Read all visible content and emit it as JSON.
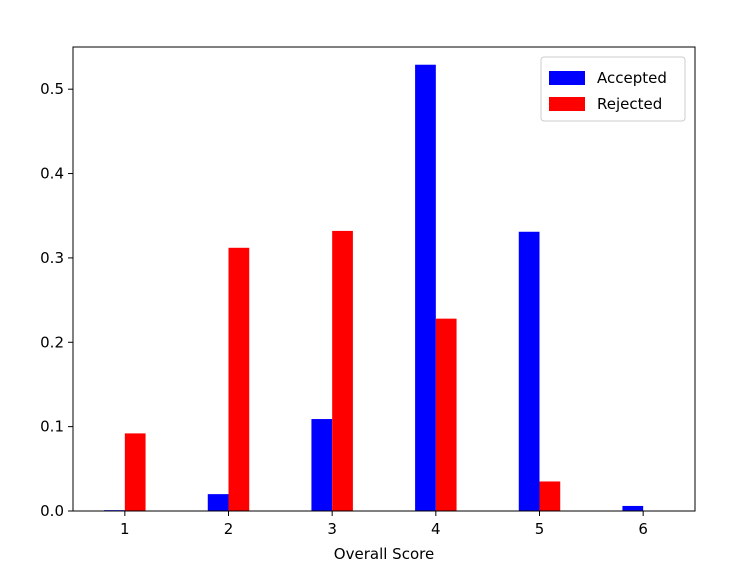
{
  "chart_data": {
    "type": "bar",
    "title": "",
    "xlabel": "Overall Score",
    "ylabel": "",
    "categories": [
      "1",
      "2",
      "3",
      "4",
      "5",
      "6"
    ],
    "ylim": [
      0,
      0.55
    ],
    "y_ticks": [
      "0.0",
      "0.1",
      "0.2",
      "0.3",
      "0.4",
      "0.5"
    ],
    "grid": false,
    "legend_position": "top-right",
    "series": [
      {
        "name": "Accepted",
        "color": "#0000ff",
        "values": [
          0.001,
          0.02,
          0.109,
          0.529,
          0.331,
          0.006
        ]
      },
      {
        "name": "Rejected",
        "color": "#ff0000",
        "values": [
          0.092,
          0.312,
          0.332,
          0.228,
          0.035,
          0.0
        ]
      }
    ]
  }
}
